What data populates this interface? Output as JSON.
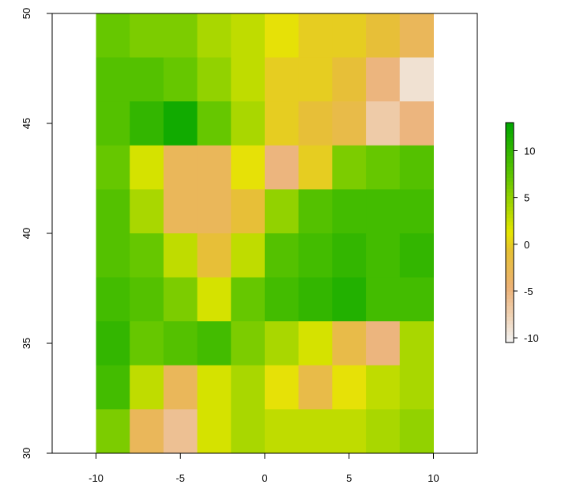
{
  "chart_data": {
    "type": "heatmap",
    "x": [
      -9,
      -7,
      -5,
      -3,
      -1,
      1,
      3,
      5,
      7,
      9
    ],
    "y": [
      49,
      47,
      45,
      43,
      41,
      39,
      37,
      35,
      33,
      31
    ],
    "values": [
      [
        7,
        6,
        6,
        4,
        3,
        1,
        0,
        0,
        -1,
        -3
      ],
      [
        8,
        8,
        7,
        5,
        3,
        0,
        0,
        -1,
        -5,
        -9
      ],
      [
        8,
        10,
        12,
        7,
        4,
        0,
        -1,
        -2,
        -7,
        -5
      ],
      [
        7,
        2,
        -3,
        -3,
        1,
        -5,
        0,
        6,
        7,
        8
      ],
      [
        8,
        4,
        -3,
        -3,
        -1,
        5,
        8,
        9,
        9,
        9
      ],
      [
        8,
        7,
        3,
        -1,
        3,
        8,
        9,
        10,
        9,
        10
      ],
      [
        9,
        8,
        6,
        2,
        7,
        9,
        10,
        11,
        9,
        9
      ],
      [
        10,
        7,
        8,
        9,
        6,
        4,
        2,
        -2,
        -5,
        4
      ],
      [
        9,
        3,
        -3,
        2,
        4,
        1,
        -2,
        1,
        3,
        4
      ],
      [
        6,
        -3,
        -6,
        2,
        4,
        3,
        3,
        3,
        4,
        5
      ]
    ],
    "xlim": [
      -12.6,
      12.6
    ],
    "ylim": [
      30,
      50
    ],
    "xticks": [
      -10,
      -5,
      0,
      5,
      10
    ],
    "yticks": [
      30,
      35,
      40,
      45,
      50
    ],
    "zlim": [
      -10.5,
      13
    ],
    "zticks": [
      -10,
      -5,
      0,
      5,
      10
    ],
    "colormap": [
      "#F2F2F2",
      "#ECB176",
      "#E6C032",
      "#E6E600",
      "#63C600",
      "#00A600"
    ]
  }
}
